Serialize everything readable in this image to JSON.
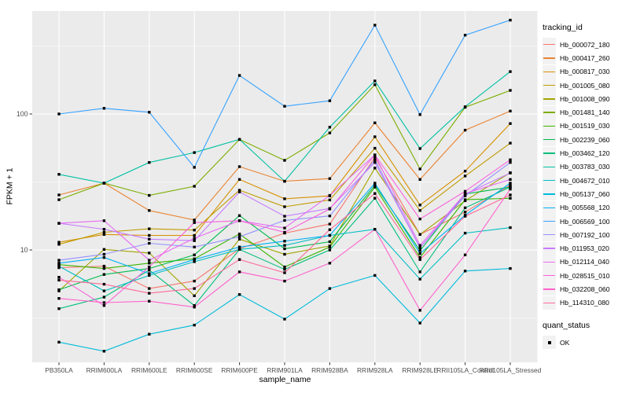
{
  "chart_data": {
    "type": "line",
    "title": "",
    "xlabel": "sample_name",
    "ylabel": "FPKM + 1",
    "y_scale": "log10",
    "y_ticks": [
      10,
      100
    ],
    "y_minor_gridlines": [
      3.162,
      31.62,
      316.2
    ],
    "ylim": [
      1.5,
      570
    ],
    "legend_position": "right",
    "grid": true,
    "panel_bg": "#EBEBEB",
    "grid_color": "#FFFFFF",
    "tick_mark_color": "#333333",
    "tick_label_color": "#4D4D4D",
    "marker": "square",
    "marker_color": "#000000",
    "legend_key_bg": "#F2F2F2",
    "legend_title": "tracking_id",
    "quant_status": {
      "title": "quant_status",
      "value": "OK"
    },
    "categories": [
      "PB350LA",
      "RRIM600LA",
      "RRIM600LE",
      "RRIM600SE",
      "RRIM600PE",
      "RRIM901LA",
      "RRIM928BA",
      "RRIM928LA",
      "RRIM928LE",
      "RRII105LA_Control",
      "RRII105LA_Stressed"
    ],
    "series": [
      {
        "name": "Hb_000072_180",
        "color": "#F8766D",
        "values": [
          7.4,
          7.6,
          5.2,
          5.9,
          10.2,
          13.3,
          15.5,
          48,
          13.0,
          19,
          30
        ]
      },
      {
        "name": "Hb_000417_260",
        "color": "#EA8331",
        "values": [
          25.4,
          31,
          19.5,
          16.6,
          41,
          32,
          33.5,
          86,
          33,
          76,
          105
        ]
      },
      {
        "name": "Hb_000817_030",
        "color": "#D89000",
        "values": [
          11.4,
          13,
          12.8,
          12.8,
          33,
          23.8,
          25,
          68,
          21.4,
          38,
          85
        ]
      },
      {
        "name": "Hb_001005_080",
        "color": "#C09B00",
        "values": [
          11.0,
          13.5,
          14.3,
          14.0,
          27.5,
          20.8,
          23.3,
          56,
          19.5,
          35,
          61
        ]
      },
      {
        "name": "Hb_001008_090",
        "color": "#A3A500",
        "values": [
          5.0,
          10.1,
          9.5,
          4.6,
          12.0,
          9.3,
          10.7,
          40,
          13.0,
          23,
          37
        ]
      },
      {
        "name": "Hb_001481_140",
        "color": "#7CAE00",
        "values": [
          23.4,
          31,
          25.2,
          29.4,
          65,
          45.6,
          72.6,
          164,
          39.4,
          112,
          149
        ]
      },
      {
        "name": "Hb_001519_030",
        "color": "#39B600",
        "values": [
          7.8,
          7.3,
          8.0,
          8.6,
          13.1,
          7.5,
          10.5,
          29,
          8.8,
          23.4,
          24
        ]
      },
      {
        "name": "Hb_002239_060",
        "color": "#00BB4E",
        "values": [
          5.1,
          6.6,
          7.3,
          9.2,
          17.9,
          10.2,
          11.5,
          30,
          9.9,
          25.8,
          29
        ]
      },
      {
        "name": "Hb_003462_120",
        "color": "#00BF7D",
        "values": [
          3.7,
          4.5,
          7.1,
          3.9,
          10.1,
          7.2,
          10.0,
          24,
          6.9,
          20.4,
          29
        ]
      },
      {
        "name": "Hb_003783_030",
        "color": "#00C1A3",
        "values": [
          36,
          31,
          44,
          52,
          65,
          32,
          80,
          175,
          55.7,
          113,
          205
        ]
      },
      {
        "name": "Hb_004672_010",
        "color": "#00BFC4",
        "values": [
          7.6,
          5.0,
          6.5,
          8.2,
          10.1,
          10.8,
          12.8,
          14.2,
          6.1,
          13.3,
          14.6
        ]
      },
      {
        "name": "Hb_005137_060",
        "color": "#00BBDA",
        "values": [
          2.1,
          1.8,
          2.4,
          2.8,
          4.7,
          3.1,
          5.2,
          6.5,
          2.9,
          7.0,
          7.3
        ]
      },
      {
        "name": "Hb_005568_120",
        "color": "#00B0F6",
        "values": [
          8.0,
          8.8,
          6.7,
          8.5,
          10.5,
          11.6,
          12.8,
          31,
          9.4,
          18,
          31
        ]
      },
      {
        "name": "Hb_006569_100",
        "color": "#35A2FF",
        "values": [
          100,
          110,
          103,
          40.5,
          192,
          114,
          125,
          450,
          99,
          380,
          490
        ]
      },
      {
        "name": "Hb_007192_100",
        "color": "#9590FF",
        "values": [
          8.4,
          9.3,
          11.2,
          10.5,
          12.5,
          16.5,
          17.8,
          46,
          10.4,
          25,
          44
        ]
      },
      {
        "name": "Hb_011953_020",
        "color": "#C77CFF",
        "values": [
          15.7,
          14.2,
          12.0,
          11.7,
          26.7,
          17.7,
          20.2,
          44,
          10.4,
          25.8,
          36.8
        ]
      },
      {
        "name": "Hb_012114_040",
        "color": "#E76BF3",
        "values": [
          15.7,
          16.4,
          8.4,
          12.2,
          16.4,
          14.5,
          25.2,
          50,
          10.8,
          26,
          33
        ]
      },
      {
        "name": "Hb_028515_010",
        "color": "#FA62DB",
        "values": [
          6.3,
          3.9,
          7.5,
          15.9,
          16.4,
          13.5,
          20,
          50,
          16.9,
          27,
          46
        ]
      },
      {
        "name": "Hb_032208_060",
        "color": "#FF61CC",
        "values": [
          4.4,
          4.1,
          4.2,
          3.8,
          6.9,
          5.9,
          8.0,
          14.2,
          3.6,
          9.2,
          28
        ]
      },
      {
        "name": "Hb_114310_080",
        "color": "#FF6A98",
        "values": [
          6.0,
          5.6,
          4.8,
          5.2,
          8.5,
          6.8,
          14.1,
          26,
          8.5,
          17.7,
          25.4
        ]
      }
    ]
  }
}
